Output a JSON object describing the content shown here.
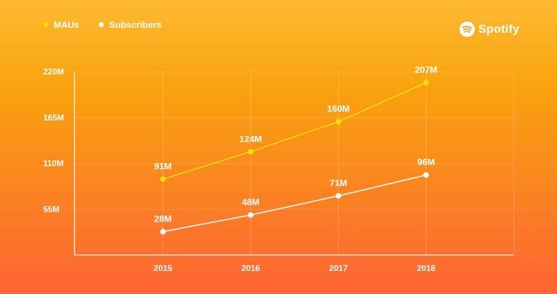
{
  "brand": {
    "name": "Spotify",
    "icon": "spotify-logo-icon"
  },
  "colors": {
    "mau": "#FFE000",
    "subscribers": "#FFFFFF"
  },
  "chart_data": {
    "type": "line",
    "title": "",
    "xlabel": "",
    "ylabel": "",
    "x": [
      "2015",
      "2016",
      "2017",
      "2018"
    ],
    "y_ticks": [
      "55M",
      "110M",
      "165M",
      "220M"
    ],
    "ylim": [
      0,
      220
    ],
    "grid": true,
    "legend": "top-left",
    "series": [
      {
        "name": "MAUs",
        "values": [
          91,
          124,
          160,
          207
        ],
        "labels": [
          "91M",
          "124M",
          "160M",
          "207M"
        ],
        "color": "#FFE000"
      },
      {
        "name": "Subscribers",
        "values": [
          28,
          48,
          71,
          96
        ],
        "labels": [
          "28M",
          "48M",
          "71M",
          "96M"
        ],
        "color": "#FFFFFF"
      }
    ]
  }
}
